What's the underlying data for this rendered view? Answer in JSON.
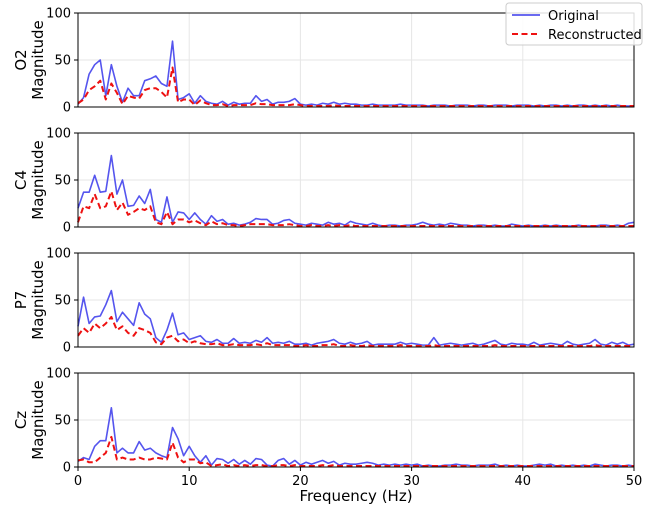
{
  "chart_data": [
    {
      "type": "line",
      "ylabel": "O2\nMagnitude",
      "ylim": [
        0,
        100
      ],
      "yticks": [
        0,
        50,
        100
      ],
      "grid": true,
      "x": [
        0,
        0.5,
        1,
        1.5,
        2,
        2.5,
        3,
        3.5,
        4,
        4.5,
        5,
        5.5,
        6,
        6.5,
        7,
        7.5,
        8,
        8.5,
        9,
        9.5,
        10,
        10.5,
        11,
        11.5,
        12,
        12.5,
        13,
        13.5,
        14,
        14.5,
        15,
        15.5,
        16,
        16.5,
        17,
        17.5,
        18,
        18.5,
        19,
        19.5,
        20,
        20.5,
        21,
        21.5,
        22,
        22.5,
        23,
        23.5,
        24,
        24.5,
        25,
        25.5,
        26,
        26.5,
        27,
        27.5,
        28,
        28.5,
        29,
        29.5,
        30,
        30.5,
        31,
        31.5,
        32,
        32.5,
        33,
        33.5,
        34,
        34.5,
        35,
        35.5,
        36,
        36.5,
        37,
        37.5,
        38,
        38.5,
        39,
        39.5,
        40,
        40.5,
        41,
        41.5,
        42,
        42.5,
        43,
        43.5,
        44,
        44.5,
        45,
        45.5,
        46,
        46.5,
        47,
        47.5,
        48,
        48.5,
        49,
        49.5,
        50
      ],
      "series": [
        {
          "name": "Original",
          "values": [
            3,
            10,
            35,
            45,
            50,
            12,
            45,
            22,
            5,
            20,
            12,
            12,
            28,
            30,
            33,
            25,
            22,
            70,
            8,
            10,
            14,
            4,
            12,
            6,
            4,
            3,
            6,
            2,
            5,
            3,
            4,
            4,
            12,
            6,
            8,
            3,
            5,
            5,
            6,
            9,
            3,
            2,
            3,
            2,
            4,
            3,
            5,
            3,
            4,
            3,
            3,
            2,
            2,
            3,
            2,
            2,
            2,
            2,
            3,
            2,
            2,
            2,
            2,
            1,
            2,
            2,
            2,
            1,
            2,
            2,
            2,
            1,
            2,
            2,
            1,
            2,
            2,
            2,
            1,
            2,
            2,
            2,
            1,
            2,
            1,
            2,
            2,
            1,
            2,
            1,
            2,
            2,
            1,
            2,
            1,
            2,
            1,
            2,
            1,
            1,
            1
          ]
        },
        {
          "name": "Reconstructed",
          "values": [
            4,
            8,
            18,
            22,
            28,
            8,
            25,
            15,
            3,
            12,
            10,
            9,
            18,
            20,
            20,
            16,
            10,
            42,
            5,
            8,
            8,
            2,
            7,
            4,
            2,
            2,
            3,
            1,
            2,
            2,
            2,
            2,
            4,
            3,
            3,
            2,
            2,
            2,
            2,
            3,
            2,
            1,
            1,
            1,
            1,
            1,
            2,
            1,
            1,
            1,
            1,
            1,
            1,
            1,
            1,
            1,
            1,
            1,
            1,
            1,
            1,
            1,
            1,
            1,
            1,
            1,
            1,
            1,
            1,
            1,
            1,
            1,
            1,
            1,
            1,
            1,
            1,
            1,
            1,
            1,
            1,
            1,
            1,
            1,
            1,
            1,
            1,
            1,
            1,
            1,
            1,
            1,
            1,
            1,
            1,
            1,
            1,
            1,
            1,
            1,
            1
          ]
        }
      ]
    },
    {
      "type": "line",
      "ylabel": "C4\nMagnitude",
      "ylim": [
        0,
        100
      ],
      "yticks": [
        0,
        50,
        100
      ],
      "grid": true,
      "x": [
        0,
        0.5,
        1,
        1.5,
        2,
        2.5,
        3,
        3.5,
        4,
        4.5,
        5,
        5.5,
        6,
        6.5,
        7,
        7.5,
        8,
        8.5,
        9,
        9.5,
        10,
        10.5,
        11,
        11.5,
        12,
        12.5,
        13,
        13.5,
        14,
        14.5,
        15,
        15.5,
        16,
        16.5,
        17,
        17.5,
        18,
        18.5,
        19,
        19.5,
        20,
        20.5,
        21,
        21.5,
        22,
        22.5,
        23,
        23.5,
        24,
        24.5,
        25,
        25.5,
        26,
        26.5,
        27,
        27.5,
        28,
        28.5,
        29,
        29.5,
        30,
        30.5,
        31,
        31.5,
        32,
        32.5,
        33,
        33.5,
        34,
        34.5,
        35,
        35.5,
        36,
        36.5,
        37,
        37.5,
        38,
        38.5,
        39,
        39.5,
        40,
        40.5,
        41,
        41.5,
        42,
        42.5,
        43,
        43.5,
        44,
        44.5,
        45,
        45.5,
        46,
        46.5,
        47,
        47.5,
        48,
        48.5,
        49,
        49.5,
        50
      ],
      "series": [
        {
          "name": "Original",
          "values": [
            20,
            37,
            37,
            55,
            37,
            38,
            76,
            35,
            50,
            22,
            23,
            33,
            25,
            40,
            8,
            5,
            32,
            5,
            16,
            15,
            8,
            15,
            8,
            3,
            12,
            6,
            8,
            3,
            4,
            2,
            3,
            5,
            9,
            8,
            8,
            3,
            4,
            7,
            8,
            4,
            3,
            2,
            4,
            3,
            2,
            5,
            3,
            4,
            2,
            6,
            4,
            3,
            2,
            4,
            2,
            1,
            2,
            2,
            1,
            2,
            2,
            3,
            5,
            3,
            2,
            3,
            2,
            4,
            3,
            2,
            2,
            1,
            2,
            2,
            1,
            2,
            1,
            1,
            3,
            2,
            1,
            2,
            1,
            1,
            2,
            1,
            2,
            1,
            1,
            1,
            2,
            1,
            1,
            1,
            2,
            2,
            1,
            2,
            1,
            4,
            5
          ]
        },
        {
          "name": "Reconstructed",
          "values": [
            5,
            22,
            20,
            35,
            20,
            22,
            38,
            18,
            26,
            13,
            16,
            20,
            18,
            22,
            5,
            3,
            16,
            3,
            8,
            8,
            5,
            7,
            4,
            2,
            6,
            3,
            4,
            2,
            2,
            1,
            2,
            3,
            3,
            3,
            3,
            2,
            2,
            2,
            3,
            2,
            1,
            1,
            2,
            1,
            1,
            2,
            1,
            2,
            1,
            2,
            1,
            1,
            1,
            1,
            1,
            1,
            1,
            1,
            1,
            1,
            1,
            1,
            1,
            1,
            1,
            1,
            1,
            1,
            1,
            1,
            1,
            1,
            1,
            1,
            1,
            1,
            1,
            1,
            1,
            1,
            1,
            1,
            1,
            1,
            1,
            1,
            1,
            1,
            1,
            1,
            1,
            1,
            1,
            1,
            1,
            1,
            1,
            1,
            1,
            1,
            1
          ]
        }
      ]
    },
    {
      "type": "line",
      "ylabel": "P7\nMagnitude",
      "ylim": [
        0,
        100
      ],
      "yticks": [
        0,
        50,
        100
      ],
      "grid": true,
      "x": [
        0,
        0.5,
        1,
        1.5,
        2,
        2.5,
        3,
        3.5,
        4,
        4.5,
        5,
        5.5,
        6,
        6.5,
        7,
        7.5,
        8,
        8.5,
        9,
        9.5,
        10,
        10.5,
        11,
        11.5,
        12,
        12.5,
        13,
        13.5,
        14,
        14.5,
        15,
        15.5,
        16,
        16.5,
        17,
        17.5,
        18,
        18.5,
        19,
        19.5,
        20,
        20.5,
        21,
        21.5,
        22,
        22.5,
        23,
        23.5,
        24,
        24.5,
        25,
        25.5,
        26,
        26.5,
        27,
        27.5,
        28,
        28.5,
        29,
        29.5,
        30,
        30.5,
        31,
        31.5,
        32,
        32.5,
        33,
        33.5,
        34,
        34.5,
        35,
        35.5,
        36,
        36.5,
        37,
        37.5,
        38,
        38.5,
        39,
        39.5,
        40,
        40.5,
        41,
        41.5,
        42,
        42.5,
        43,
        43.5,
        44,
        44.5,
        45,
        45.5,
        46,
        46.5,
        47,
        47.5,
        48,
        48.5,
        49,
        49.5,
        50
      ],
      "series": [
        {
          "name": "Original",
          "values": [
            22,
            53,
            25,
            32,
            33,
            45,
            60,
            27,
            37,
            30,
            23,
            47,
            35,
            30,
            10,
            5,
            18,
            36,
            13,
            15,
            8,
            10,
            12,
            6,
            5,
            8,
            4,
            4,
            9,
            4,
            5,
            4,
            7,
            5,
            10,
            4,
            5,
            4,
            6,
            3,
            3,
            4,
            2,
            4,
            5,
            6,
            8,
            4,
            3,
            5,
            3,
            4,
            6,
            2,
            3,
            3,
            3,
            3,
            5,
            3,
            4,
            3,
            2,
            2,
            10,
            2,
            3,
            4,
            3,
            2,
            3,
            4,
            2,
            3,
            5,
            7,
            3,
            2,
            4,
            3,
            3,
            2,
            5,
            2,
            3,
            4,
            3,
            2,
            6,
            3,
            2,
            3,
            4,
            8,
            3,
            2,
            5,
            3,
            5,
            2,
            3
          ]
        },
        {
          "name": "Reconstructed",
          "values": [
            12,
            20,
            15,
            25,
            20,
            25,
            32,
            18,
            22,
            15,
            12,
            20,
            18,
            15,
            5,
            3,
            10,
            12,
            6,
            8,
            4,
            6,
            4,
            3,
            3,
            4,
            2,
            2,
            3,
            2,
            2,
            2,
            3,
            2,
            4,
            2,
            2,
            2,
            2,
            1,
            1,
            2,
            1,
            1,
            2,
            2,
            3,
            1,
            1,
            2,
            1,
            1,
            2,
            1,
            1,
            1,
            1,
            1,
            2,
            1,
            1,
            1,
            1,
            1,
            2,
            1,
            1,
            1,
            1,
            1,
            1,
            1,
            1,
            1,
            1,
            2,
            1,
            1,
            1,
            1,
            1,
            1,
            1,
            1,
            1,
            1,
            1,
            1,
            1,
            1,
            1,
            1,
            1,
            2,
            1,
            1,
            1,
            1,
            1,
            1,
            1
          ]
        }
      ]
    },
    {
      "type": "line",
      "ylabel": "Cz\nMagnitude",
      "ylim": [
        0,
        100
      ],
      "yticks": [
        0,
        50,
        100
      ],
      "grid": true,
      "xlabel": "Frequency (Hz)",
      "xlim": [
        0,
        50
      ],
      "xticks": [
        0,
        10,
        20,
        30,
        40,
        50
      ],
      "x": [
        0,
        0.5,
        1,
        1.5,
        2,
        2.5,
        3,
        3.5,
        4,
        4.5,
        5,
        5.5,
        6,
        6.5,
        7,
        7.5,
        8,
        8.5,
        9,
        9.5,
        10,
        10.5,
        11,
        11.5,
        12,
        12.5,
        13,
        13.5,
        14,
        14.5,
        15,
        15.5,
        16,
        16.5,
        17,
        17.5,
        18,
        18.5,
        19,
        19.5,
        20,
        20.5,
        21,
        21.5,
        22,
        22.5,
        23,
        23.5,
        24,
        24.5,
        25,
        25.5,
        26,
        26.5,
        27,
        27.5,
        28,
        28.5,
        29,
        29.5,
        30,
        30.5,
        31,
        31.5,
        32,
        32.5,
        33,
        33.5,
        34,
        34.5,
        35,
        35.5,
        36,
        36.5,
        37,
        37.5,
        38,
        38.5,
        39,
        39.5,
        40,
        40.5,
        41,
        41.5,
        42,
        42.5,
        43,
        43.5,
        44,
        44.5,
        45,
        45.5,
        46,
        46.5,
        47,
        47.5,
        48,
        48.5,
        49,
        49.5,
        50
      ],
      "series": [
        {
          "name": "Original",
          "values": [
            6,
            10,
            8,
            22,
            28,
            28,
            63,
            15,
            20,
            15,
            15,
            27,
            18,
            20,
            15,
            12,
            10,
            42,
            30,
            12,
            22,
            12,
            5,
            12,
            2,
            9,
            8,
            4,
            8,
            3,
            7,
            3,
            9,
            8,
            2,
            1,
            7,
            9,
            3,
            7,
            2,
            5,
            3,
            5,
            7,
            4,
            6,
            2,
            4,
            3,
            3,
            4,
            5,
            4,
            2,
            3,
            2,
            3,
            2,
            3,
            2,
            3,
            1,
            2,
            1,
            1,
            2,
            2,
            3,
            2,
            2,
            1,
            2,
            2,
            2,
            3,
            1,
            2,
            1,
            2,
            1,
            1,
            2,
            3,
            2,
            3,
            1,
            2,
            1,
            2,
            1,
            2,
            1,
            3,
            2,
            1,
            2,
            2,
            1,
            2,
            1
          ]
        },
        {
          "name": "Reconstructed",
          "values": [
            7,
            8,
            5,
            5,
            10,
            15,
            32,
            8,
            10,
            8,
            8,
            10,
            8,
            8,
            10,
            9,
            8,
            26,
            10,
            5,
            8,
            8,
            4,
            5,
            1,
            2,
            3,
            1,
            2,
            1,
            2,
            1,
            2,
            2,
            1,
            1,
            2,
            2,
            1,
            2,
            1,
            1,
            1,
            1,
            2,
            1,
            2,
            1,
            1,
            1,
            1,
            1,
            1,
            1,
            1,
            1,
            1,
            1,
            1,
            1,
            1,
            1,
            1,
            1,
            1,
            1,
            1,
            1,
            1,
            1,
            1,
            1,
            1,
            1,
            1,
            1,
            1,
            1,
            1,
            1,
            1,
            1,
            1,
            1,
            1,
            1,
            1,
            1,
            1,
            1,
            1,
            1,
            1,
            1,
            1,
            1,
            1,
            1,
            1,
            1,
            1
          ]
        }
      ]
    }
  ],
  "legend": {
    "position": "top-right",
    "entries": [
      "Original",
      "Reconstructed"
    ]
  },
  "colors": {
    "original": "#5555ee",
    "reconstructed": "#ee1111",
    "grid": "#e6e6e6",
    "axes": "#000000"
  }
}
